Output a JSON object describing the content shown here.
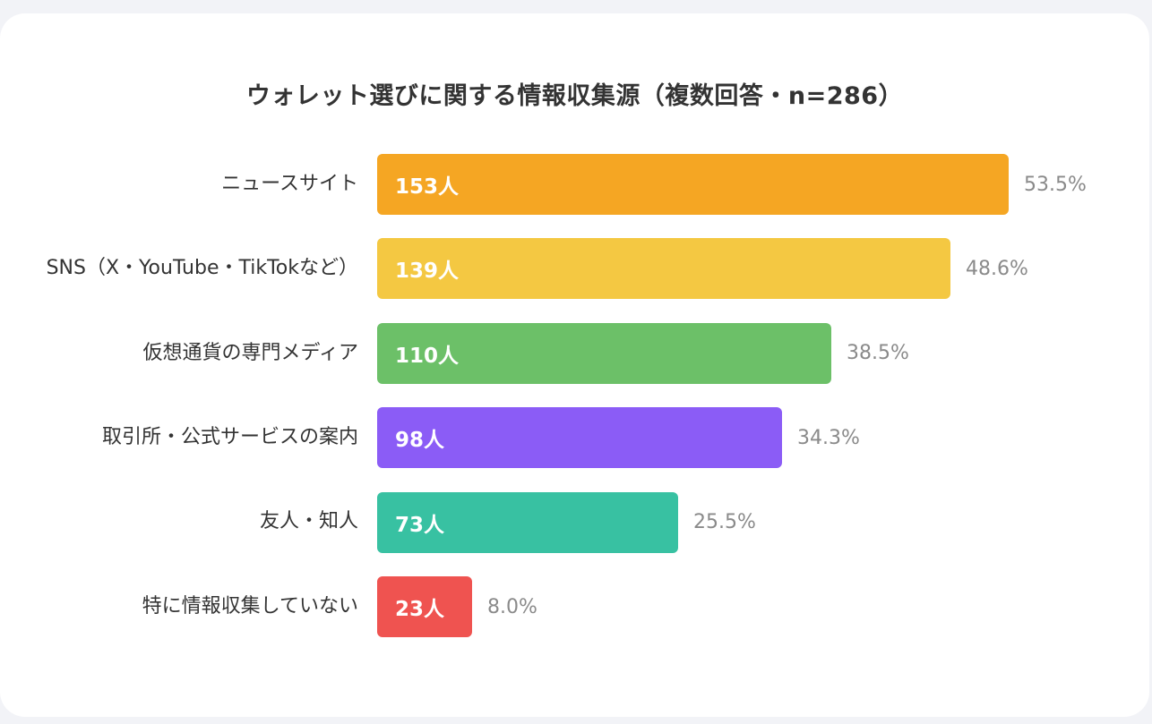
{
  "chart_data": {
    "type": "bar",
    "orientation": "horizontal",
    "title": "ウォレット選びに関する情報収集源（複数回答・n=286）",
    "unit": "人",
    "categories": [
      "ニュースサイト",
      "SNS（X・YouTube・TikTokなど）",
      "仮想通貨の専門メディア",
      "取引所・公式サービスの案内",
      "友人・知人",
      "特に情報収集していない"
    ],
    "values": [
      153,
      139,
      110,
      98,
      73,
      23
    ],
    "value_labels": [
      "153人",
      "139人",
      "110人",
      "98人",
      "73人",
      "23人"
    ],
    "percent_labels": [
      "53.5%",
      "48.6%",
      "38.5%",
      "34.3%",
      "25.5%",
      "8.0%"
    ],
    "colors": [
      "#f5a623",
      "#f4c842",
      "#6cc068",
      "#8b5cf6",
      "#38c1a2",
      "#ef5350"
    ],
    "xlim": [
      0,
      153
    ],
    "grid": false,
    "legend": "none"
  }
}
